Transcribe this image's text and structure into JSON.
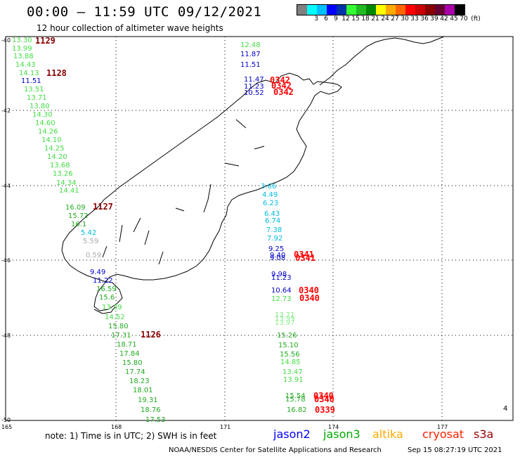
{
  "header": {
    "title": "00:00 – 11:59 UTC 09/12/2021",
    "subtitle": "12 hour collection of altimeter wave heights"
  },
  "legend": {
    "colors": [
      "#808080",
      "#00ffff",
      "#00bfff",
      "#0000ff",
      "#0033aa",
      "#33ff33",
      "#22bb22",
      "#008800",
      "#ffff00",
      "#ffaa00",
      "#ff6600",
      "#ff0000",
      "#cc0000",
      "#880000",
      "#660033",
      "#aa00aa",
      "#000000"
    ],
    "ticks": [
      "",
      "3",
      "6",
      "9",
      "12",
      "15",
      "18",
      "21",
      "24",
      "27",
      "30",
      "33",
      "36",
      "39",
      "42",
      "45",
      "70",
      "(ft)"
    ]
  },
  "axes": {
    "lon_labels": [
      "165",
      "168",
      "171",
      "174",
      "177"
    ],
    "lat_labels": [
      "-40",
      "-42",
      "-44",
      "-46",
      "-48",
      "-50"
    ]
  },
  "readings": [
    {
      "v": "13.30",
      "c": "#44dd44"
    },
    {
      "v": "13.99",
      "c": "#44dd44"
    },
    {
      "v": "13.88",
      "c": "#44dd44"
    },
    {
      "v": "14.43",
      "c": "#44dd44"
    },
    {
      "v": "14.13",
      "c": "#44dd44"
    },
    {
      "v": "11.51",
      "c": "#0000cc"
    },
    {
      "v": "13.51",
      "c": "#44dd44"
    },
    {
      "v": "13.71",
      "c": "#44dd44"
    },
    {
      "v": "13.80",
      "c": "#44dd44"
    },
    {
      "v": "14.30",
      "c": "#44dd44"
    },
    {
      "v": "14.60",
      "c": "#44dd44"
    },
    {
      "v": "14.26",
      "c": "#44dd44"
    },
    {
      "v": "14.10",
      "c": "#44dd44"
    },
    {
      "v": "14.25",
      "c": "#44dd44"
    },
    {
      "v": "14.20",
      "c": "#44dd44"
    },
    {
      "v": "13.68",
      "c": "#44dd44"
    },
    {
      "v": "13.26",
      "c": "#44dd44"
    },
    {
      "v": "14.34",
      "c": "#44dd44"
    },
    {
      "v": "14.41",
      "c": "#44dd44"
    },
    {
      "v": "16.09",
      "c": "#22aa22"
    },
    {
      "v": "15.72",
      "c": "#22aa22"
    },
    {
      "v": "16.1",
      "c": "#22aa22"
    },
    {
      "v": "5.42",
      "c": "#00bbdd"
    },
    {
      "v": "5.59",
      "c": "#aaaaaa"
    },
    {
      "v": "0.59",
      "c": "#aaaaaa"
    },
    {
      "v": "9.49",
      "c": "#0000cc"
    },
    {
      "v": "11.22",
      "c": "#0000cc"
    },
    {
      "v": "16.59",
      "c": "#22aa22"
    },
    {
      "v": "15.6",
      "c": "#22aa22"
    },
    {
      "v": "13.39",
      "c": "#44dd44"
    },
    {
      "v": "14.52",
      "c": "#44dd44"
    },
    {
      "v": "15.80",
      "c": "#22aa22"
    },
    {
      "v": "17.31",
      "c": "#22aa22"
    },
    {
      "v": "18.71",
      "c": "#22aa22"
    },
    {
      "v": "17.84",
      "c": "#22aa22"
    },
    {
      "v": "15.80",
      "c": "#22aa22"
    },
    {
      "v": "17.74",
      "c": "#22aa22"
    },
    {
      "v": "18.23",
      "c": "#22aa22"
    },
    {
      "v": "18.01",
      "c": "#22aa22"
    },
    {
      "v": "19.31",
      "c": "#22aa22"
    },
    {
      "v": "18.76",
      "c": "#22aa22"
    },
    {
      "v": "17.53",
      "c": "#22aa22"
    },
    {
      "v": "12.48",
      "c": "#44dd44"
    },
    {
      "v": "11.87",
      "c": "#0000cc"
    },
    {
      "v": "11.51",
      "c": "#0000cc"
    },
    {
      "v": "11.47",
      "c": "#0000cc"
    },
    {
      "v": "11.23",
      "c": "#0000cc"
    },
    {
      "v": "10.52",
      "c": "#0000cc"
    },
    {
      "v": "3.66",
      "c": "#00bbdd"
    },
    {
      "v": "4.49",
      "c": "#00bbdd"
    },
    {
      "v": "6.23",
      "c": "#00bbdd"
    },
    {
      "v": "6.43",
      "c": "#00bbdd"
    },
    {
      "v": "6.74",
      "c": "#00bbdd"
    },
    {
      "v": "7.38",
      "c": "#00bbdd"
    },
    {
      "v": "7.92",
      "c": "#00bbdd"
    },
    {
      "v": "9.25",
      "c": "#0000cc"
    },
    {
      "v": "9.40",
      "c": "#0000cc"
    },
    {
      "v": "9.08",
      "c": "#0000cc"
    },
    {
      "v": "9.98",
      "c": "#0000cc"
    },
    {
      "v": "11.23",
      "c": "#0000cc"
    },
    {
      "v": "10.64",
      "c": "#0000cc"
    },
    {
      "v": "12.73",
      "c": "#44dd44"
    },
    {
      "v": "13.71",
      "c": "#88ee88"
    },
    {
      "v": "13.99",
      "c": "#88ee88"
    },
    {
      "v": "13.97",
      "c": "#88ee88"
    },
    {
      "v": "15.26",
      "c": "#22aa22"
    },
    {
      "v": "15.10",
      "c": "#22aa22"
    },
    {
      "v": "15.56",
      "c": "#22aa22"
    },
    {
      "v": "14.85",
      "c": "#44dd44"
    },
    {
      "v": "13.47",
      "c": "#44dd44"
    },
    {
      "v": "13.91",
      "c": "#44dd44"
    },
    {
      "v": "15.54",
      "c": "#22aa22"
    },
    {
      "v": "15.78",
      "c": "#22aa22"
    },
    {
      "v": "16.82",
      "c": "#22aa22"
    }
  ],
  "passes": [
    {
      "v": "1129",
      "c": "#880000"
    },
    {
      "v": "1128",
      "c": "#880000"
    },
    {
      "v": "1127",
      "c": "#880000"
    },
    {
      "v": "1126",
      "c": "#880000"
    },
    {
      "v": "0342",
      "c": "#ff0000"
    },
    {
      "v": "0342",
      "c": "#ff0000"
    },
    {
      "v": "0342",
      "c": "#ff0000"
    },
    {
      "v": "0341",
      "c": "#ff0000"
    },
    {
      "v": "0341",
      "c": "#ff0000"
    },
    {
      "v": "0340",
      "c": "#ff0000"
    },
    {
      "v": "0340",
      "c": "#ff0000"
    },
    {
      "v": "0340",
      "c": "#ff0000"
    },
    {
      "v": "0340",
      "c": "#ff0000"
    },
    {
      "v": "0339",
      "c": "#ff0000"
    }
  ],
  "footer": {
    "note": "note:  1) Time is in UTC;  2) SWH is in feet",
    "missions": [
      {
        "label": "jason2",
        "color": "#0000ff"
      },
      {
        "label": "jason3",
        "color": "#00aa00"
      },
      {
        "label": "altika",
        "color": "#ffaa00"
      },
      {
        "label": "cryosat",
        "color": "#ff2200"
      },
      {
        "label": "s3a",
        "color": "#990000"
      }
    ],
    "credit": "NOAA/NESDIS Center for Satellite Applications and Research",
    "stamp": "Sep 15 08:27:19 UTC 2021"
  }
}
